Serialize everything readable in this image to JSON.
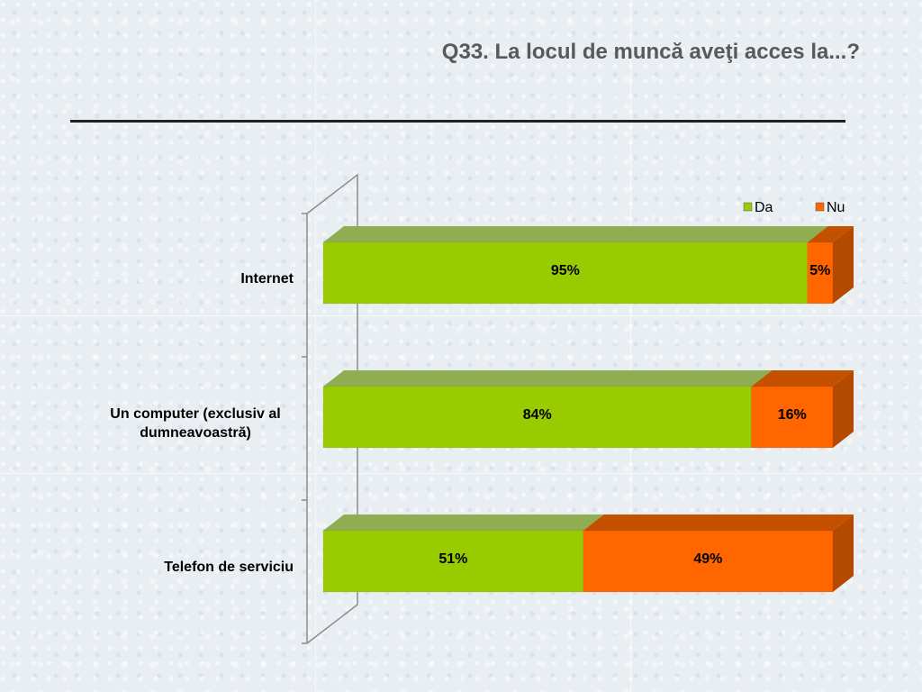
{
  "slide": {
    "title": "Q33. La locul de muncă aveţi acces la...?"
  },
  "chart_data": {
    "type": "bar",
    "orientation": "horizontal",
    "stacked": true,
    "percent_stacked": true,
    "three_d": true,
    "categories": [
      "Internet",
      "Un computer (exclusiv al dumneavoastră)",
      "Telefon de serviciu"
    ],
    "category_lines": [
      [
        "Internet"
      ],
      [
        "Un computer (exclusiv al",
        "dumneavoastră)"
      ],
      [
        "Telefon de serviciu"
      ]
    ],
    "series": [
      {
        "name": "Da",
        "values": [
          95,
          84,
          51
        ],
        "labels": [
          "95%",
          "84%",
          "51%"
        ],
        "color": "#99cc00",
        "top_color": "#8fad52",
        "side_color": "#6f8f1f"
      },
      {
        "name": "Nu",
        "values": [
          5,
          16,
          49
        ],
        "labels": [
          "5%",
          "16%",
          "49%"
        ],
        "color": "#ff6600",
        "top_color": "#c45100",
        "side_color": "#b34a00"
      }
    ],
    "xlim": [
      0,
      100
    ],
    "legend": "top-right",
    "grid": false
  }
}
